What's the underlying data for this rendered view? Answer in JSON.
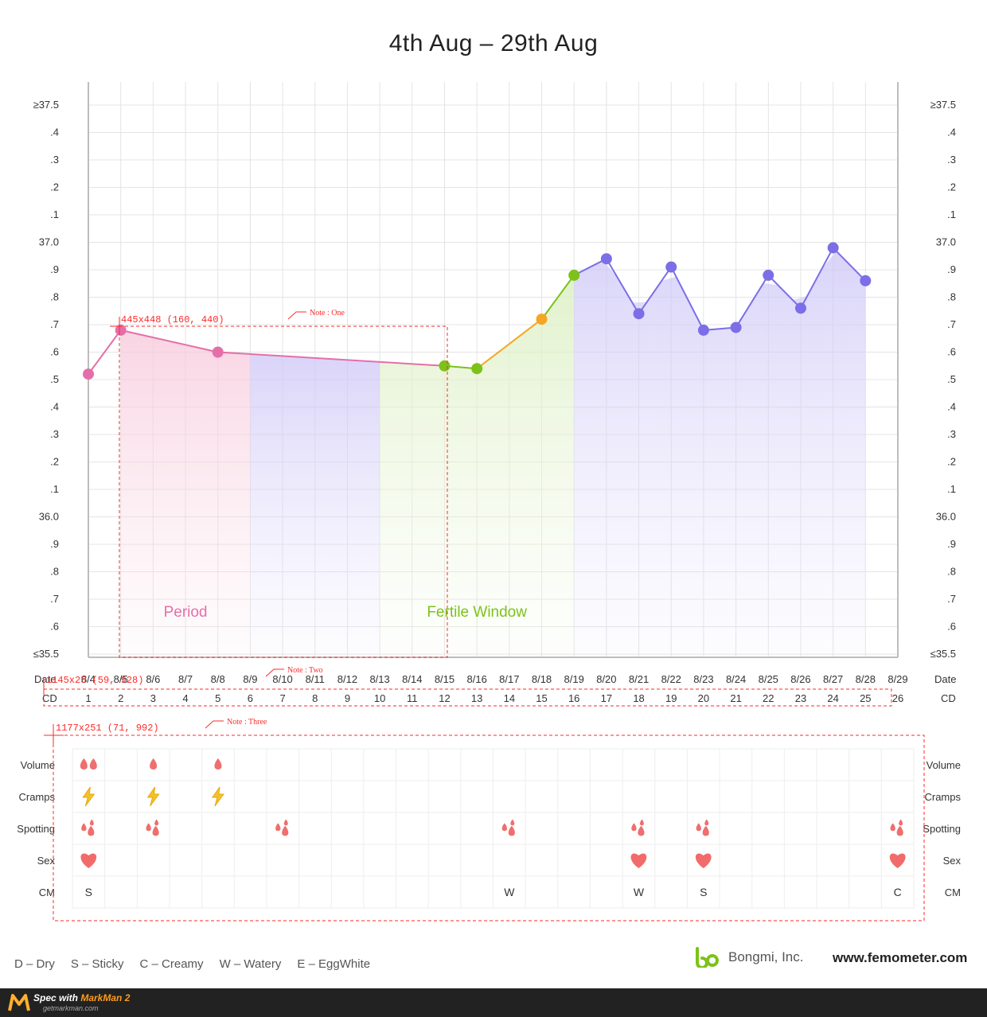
{
  "title": "4th Aug – 29th Aug",
  "colors": {
    "period": "#e46fa8",
    "fertile": "#7cc21a",
    "ovulation": "#f5a623",
    "luteal": "#7b6ee6",
    "annotation": "#ff2a2a"
  },
  "chart_data": {
    "type": "line",
    "title": "4th Aug – 29th Aug",
    "y_tick_labels": [
      "≥37.5",
      ".4",
      ".3",
      ".2",
      ".1",
      "37.0",
      ".9",
      ".8",
      ".7",
      ".6",
      ".5",
      ".4",
      ".3",
      ".2",
      ".1",
      "36.0",
      ".9",
      ".8",
      ".7",
      ".6",
      "≤35.5"
    ],
    "ylim": [
      35.5,
      37.5
    ],
    "grid": true,
    "dates": [
      "8/4",
      "8/5",
      "8/6",
      "8/7",
      "8/8",
      "8/9",
      "8/10",
      "8/11",
      "8/12",
      "8/13",
      "8/14",
      "8/15",
      "8/16",
      "8/17",
      "8/18",
      "8/19",
      "8/20",
      "8/21",
      "8/22",
      "8/23",
      "8/24",
      "8/25",
      "8/26",
      "8/27",
      "8/28",
      "8/29"
    ],
    "cycle_days": [
      "1",
      "2",
      "3",
      "4",
      "5",
      "6",
      "7",
      "8",
      "9",
      "10",
      "11",
      "12",
      "13",
      "14",
      "15",
      "16",
      "17",
      "18",
      "19",
      "20",
      "21",
      "22",
      "23",
      "24",
      "25",
      "26"
    ],
    "date_axis_label": "Date",
    "cd_axis_label": "CD",
    "temperatures": [
      {
        "day": 1,
        "value": 36.52,
        "phase": "period"
      },
      {
        "day": 2,
        "value": 36.68,
        "phase": "period"
      },
      {
        "day": 5,
        "value": 36.6,
        "phase": "period"
      },
      {
        "day": 12,
        "value": 36.55,
        "phase": "fertile"
      },
      {
        "day": 13,
        "value": 36.54,
        "phase": "fertile"
      },
      {
        "day": 15,
        "value": 36.72,
        "phase": "ovulation"
      },
      {
        "day": 16,
        "value": 36.88,
        "phase": "fertile"
      },
      {
        "day": 17,
        "value": 36.94,
        "phase": "luteal"
      },
      {
        "day": 18,
        "value": 36.74,
        "phase": "luteal"
      },
      {
        "day": 19,
        "value": 36.91,
        "phase": "luteal"
      },
      {
        "day": 20,
        "value": 36.68,
        "phase": "luteal"
      },
      {
        "day": 21,
        "value": 36.69,
        "phase": "luteal"
      },
      {
        "day": 22,
        "value": 36.88,
        "phase": "luteal"
      },
      {
        "day": 23,
        "value": 36.76,
        "phase": "luteal"
      },
      {
        "day": 24,
        "value": 36.98,
        "phase": "luteal"
      },
      {
        "day": 25,
        "value": 36.86,
        "phase": "luteal"
      }
    ],
    "phase_labels": {
      "period": "Period",
      "fertile": "Fertile Window"
    },
    "bands": [
      {
        "phase": "period",
        "from_day": 2,
        "to_day": 6
      },
      {
        "phase": "luteal",
        "from_day": 6,
        "to_day": 10
      },
      {
        "phase": "fertile",
        "from_day": 10,
        "to_day": 16
      },
      {
        "phase": "luteal",
        "from_day": 16,
        "to_day": 25
      }
    ]
  },
  "symptoms": {
    "rows": [
      "Volume",
      "Cramps",
      "Spotting",
      "Sex",
      "CM"
    ],
    "volume": [
      {
        "day": 1,
        "level": 2
      },
      {
        "day": 3,
        "level": 1
      },
      {
        "day": 5,
        "level": 1
      }
    ],
    "cramps": [
      1,
      3,
      5
    ],
    "spotting": [
      1,
      3,
      7,
      14,
      18,
      20,
      26
    ],
    "sex": [
      1,
      18,
      20,
      26
    ],
    "cm": [
      {
        "day": 1,
        "code": "S"
      },
      {
        "day": 14,
        "code": "W"
      },
      {
        "day": 18,
        "code": "W"
      },
      {
        "day": 20,
        "code": "S"
      },
      {
        "day": 26,
        "code": "C"
      }
    ]
  },
  "annotations": {
    "box1_label": "445x448 (160, 440)",
    "box2_label": "1145x25 (59, 928)",
    "box3_label": "1177x251 (71, 992)",
    "note1": "Note : One",
    "note2": "Note : Two",
    "note3": "Note : Three"
  },
  "legend": [
    "D – Dry",
    "S – Sticky",
    "C – Creamy",
    "W – Watery",
    "E – EggWhite"
  ],
  "company": {
    "name": "Bongmi, Inc.",
    "website": "www.femometer.com"
  },
  "markman": {
    "spec": "Spec with ",
    "brand": "MarkMan 2",
    "url": "getmarkman.com"
  }
}
